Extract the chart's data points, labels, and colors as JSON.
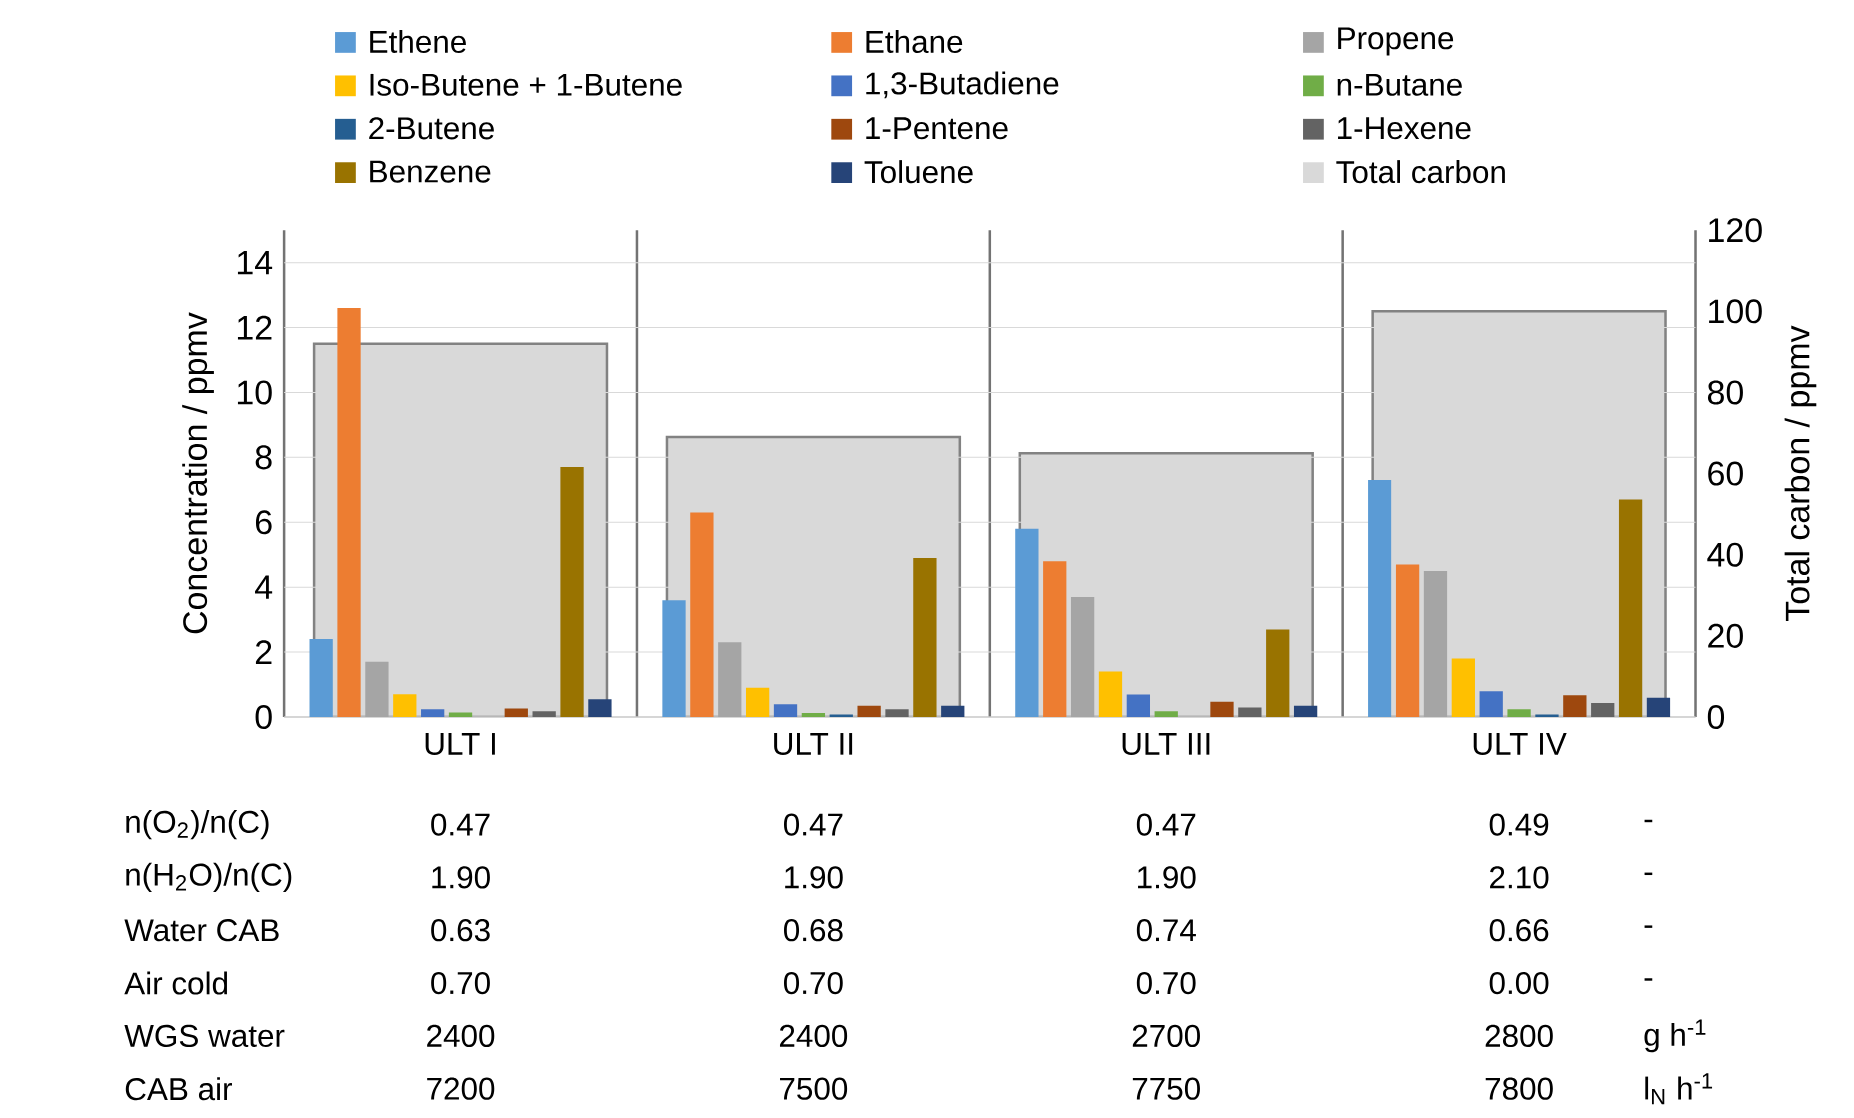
{
  "chart_data": {
    "type": "bar",
    "ylabel": "Concentration / ppmv",
    "y2label": "Total carbon / ppmv",
    "categories": [
      "ULT I",
      "ULT II",
      "ULT III",
      "ULT IV"
    ],
    "series": [
      {
        "name": "Ethene",
        "color": "#5b9bd5",
        "values": [
          2.4,
          3.6,
          5.8,
          7.3
        ]
      },
      {
        "name": "Ethane",
        "color": "#ed7d31",
        "values": [
          12.6,
          6.3,
          4.8,
          4.7
        ]
      },
      {
        "name": "Propene",
        "color": "#a5a5a5",
        "values": [
          1.7,
          2.3,
          3.7,
          4.5
        ]
      },
      {
        "name": "Iso-Butene + 1-Butene",
        "color": "#ffc000",
        "values": [
          0.7,
          0.9,
          1.4,
          1.8
        ]
      },
      {
        "name": "1,3-Butadiene",
        "color": "#4472c4",
        "values": [
          0.24,
          0.39,
          0.69,
          0.79
        ]
      },
      {
        "name": "n-Butane",
        "color": "#70ad47",
        "values": [
          0.14,
          0.12,
          0.18,
          0.24
        ]
      },
      {
        "name": "2-Butene",
        "color": "#255e91",
        "values": [
          0,
          0.08,
          0,
          0.08
        ]
      },
      {
        "name": "1-Pentene",
        "color": "#9e480e",
        "values": [
          0.26,
          0.35,
          0.47,
          0.67
        ]
      },
      {
        "name": "1-Hexene",
        "color": "#636363",
        "values": [
          0.18,
          0.24,
          0.29,
          0.43
        ]
      },
      {
        "name": "Benzene",
        "color": "#997300",
        "values": [
          7.7,
          4.9,
          2.7,
          6.7
        ]
      },
      {
        "name": "Toluene",
        "color": "#264478",
        "values": [
          0.55,
          0.35,
          0.35,
          0.59
        ]
      },
      {
        "name": "Total carbon",
        "color": "#d9d9d9",
        "axis": "y2",
        "values": [
          92,
          69,
          65,
          100
        ]
      }
    ],
    "ylim": [
      0,
      15
    ],
    "yticks": [
      0,
      2,
      4,
      6,
      8,
      10,
      12,
      14
    ],
    "y2lim": [
      0,
      120
    ],
    "y2ticks": [
      0,
      20,
      40,
      60,
      80,
      100,
      120
    ],
    "grid": true,
    "legend": "top",
    "annotations": [
      "n(O$_{2}$)/n(C)",
      "0.47",
      "0.47",
      "0.47",
      "0.49",
      "-",
      "n(H$_{2}$O)/n(C)",
      "1.90",
      "1.90",
      "1.90",
      "2.10",
      "-",
      "Water CAB",
      "0.63",
      "0.68",
      "0.74",
      "0.66",
      "-",
      "Air cold",
      "0.70",
      "0.70",
      "0.70",
      "0.00",
      "-",
      "WGS water",
      "2400",
      "2400",
      "2700",
      "2800",
      "g h$^{-1}$",
      "CAB air",
      "7200",
      "7500",
      "7750",
      "7800",
      "l$_{N}$ h$^{-1}$"
    ]
  }
}
